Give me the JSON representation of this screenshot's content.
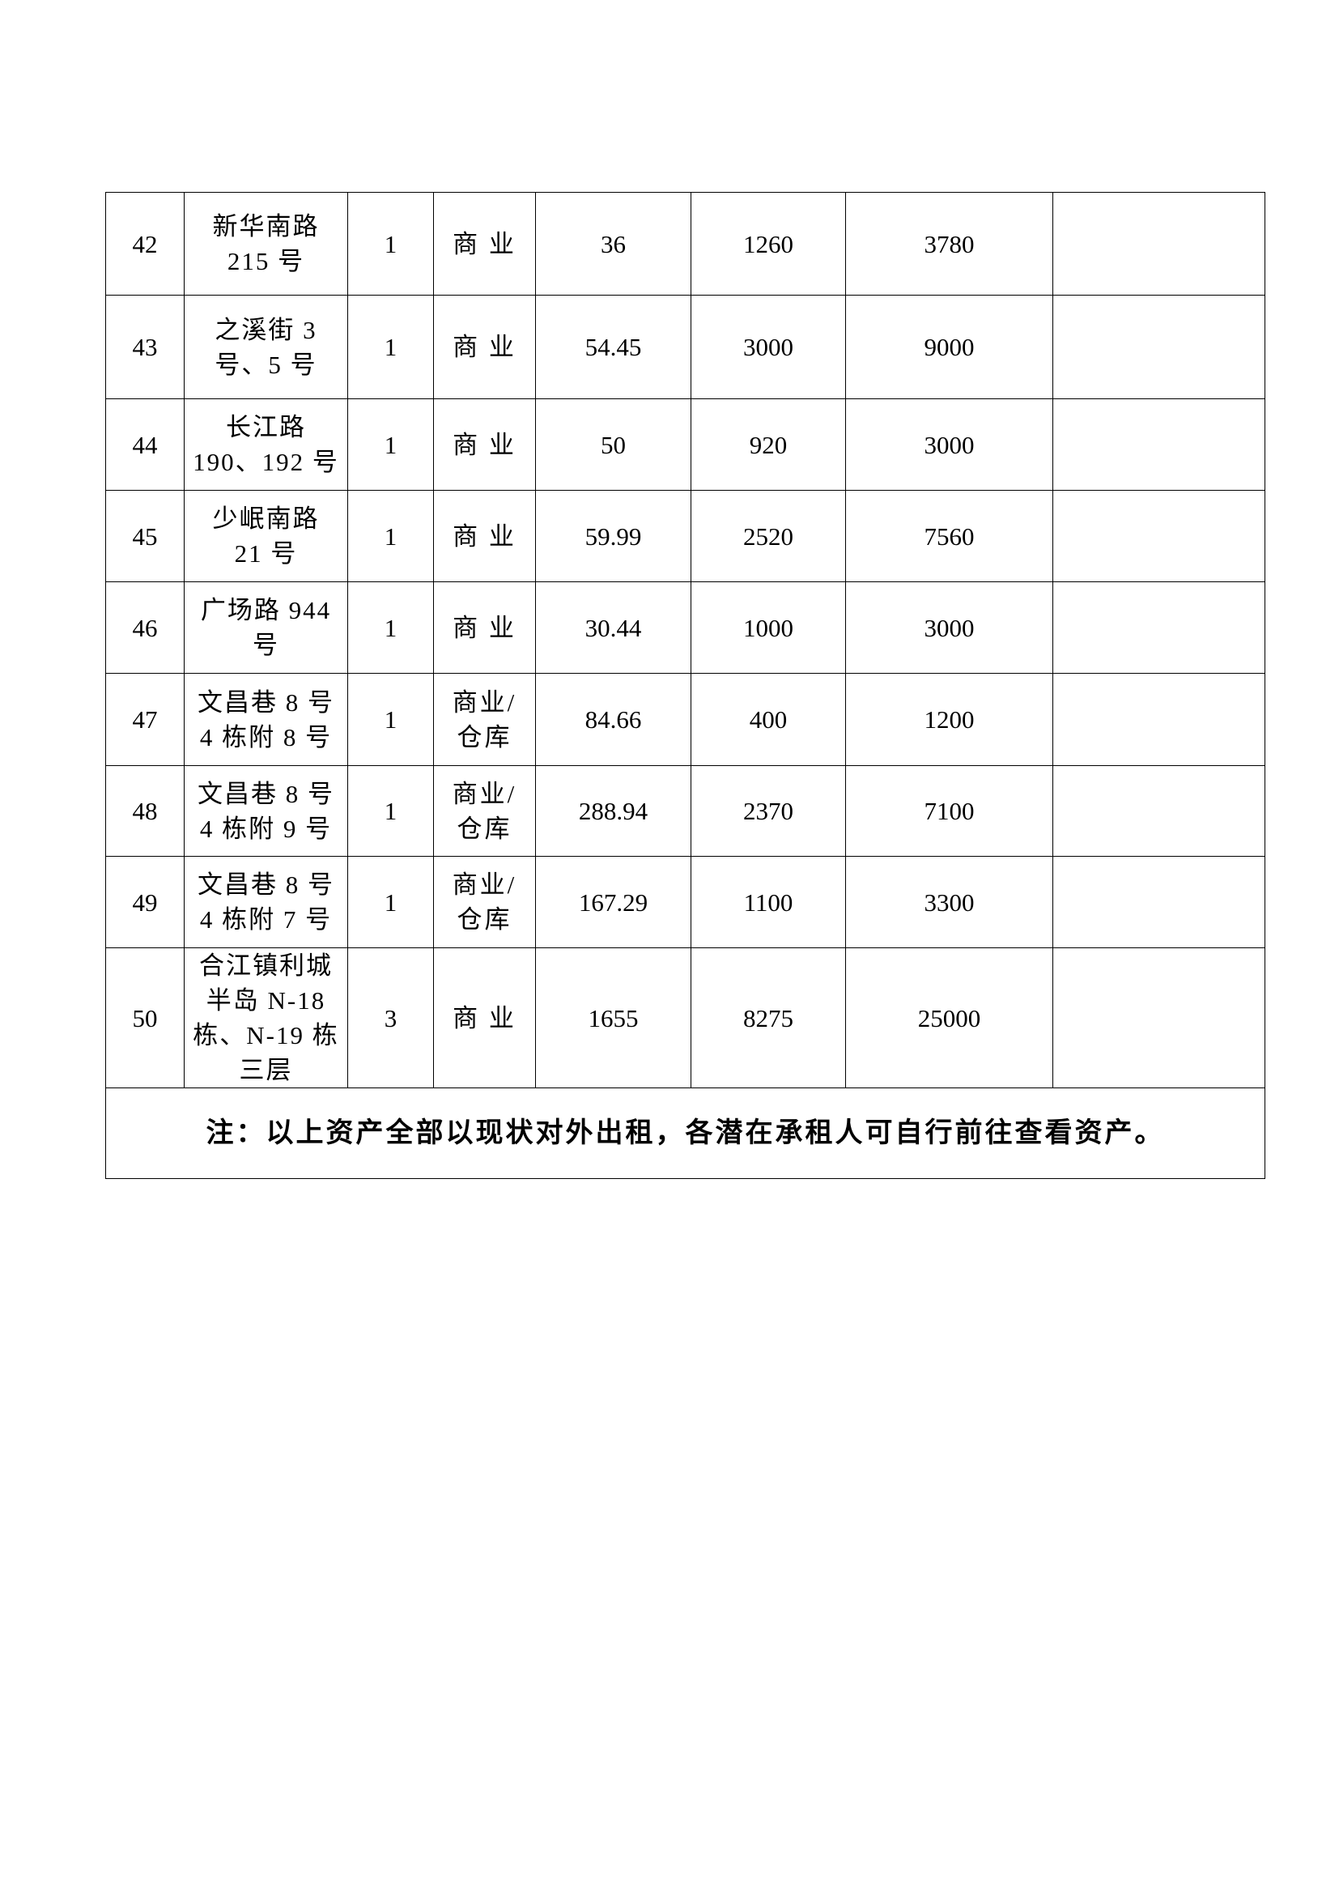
{
  "rows": [
    {
      "no": "42",
      "address": "新华南路\n215 号",
      "count": "1",
      "use": "商 业",
      "area": "36",
      "rent1": "1260",
      "rent2": "3780",
      "remark": ""
    },
    {
      "no": "43",
      "address": "之溪街 3\n号、5 号",
      "count": "1",
      "use": "商 业",
      "area": "54.45",
      "rent1": "3000",
      "rent2": "9000",
      "remark": ""
    },
    {
      "no": "44",
      "address": "长江路\n190、192 号",
      "count": "1",
      "use": "商 业",
      "area": "50",
      "rent1": "920",
      "rent2": "3000",
      "remark": ""
    },
    {
      "no": "45",
      "address": "少岷南路\n21 号",
      "count": "1",
      "use": "商 业",
      "area": "59.99",
      "rent1": "2520",
      "rent2": "7560",
      "remark": ""
    },
    {
      "no": "46",
      "address": "广场路 944\n号",
      "count": "1",
      "use": "商 业",
      "area": "30.44",
      "rent1": "1000",
      "rent2": "3000",
      "remark": ""
    },
    {
      "no": "47",
      "address": "文昌巷 8 号\n4 栋附 8 号",
      "count": "1",
      "use": "商业/\n仓库",
      "area": "84.66",
      "rent1": "400",
      "rent2": "1200",
      "remark": ""
    },
    {
      "no": "48",
      "address": "文昌巷 8 号\n4 栋附 9 号",
      "count": "1",
      "use": "商业/\n仓库",
      "area": "288.94",
      "rent1": "2370",
      "rent2": "7100",
      "remark": ""
    },
    {
      "no": "49",
      "address": "文昌巷 8 号\n4 栋附 7 号",
      "count": "1",
      "use": "商业/\n仓库",
      "area": "167.29",
      "rent1": "1100",
      "rent2": "3300",
      "remark": ""
    },
    {
      "no": "50",
      "address": "合江镇利城\n半岛 N-18\n栋、N-19 栋\n三层",
      "count": "3",
      "use": "商 业",
      "area": "1655",
      "rent1": "8275",
      "rent2": "25000",
      "remark": ""
    }
  ],
  "note": "注：以上资产全部以现状对外出租，各潜在承租人可自行前往查看资产。"
}
